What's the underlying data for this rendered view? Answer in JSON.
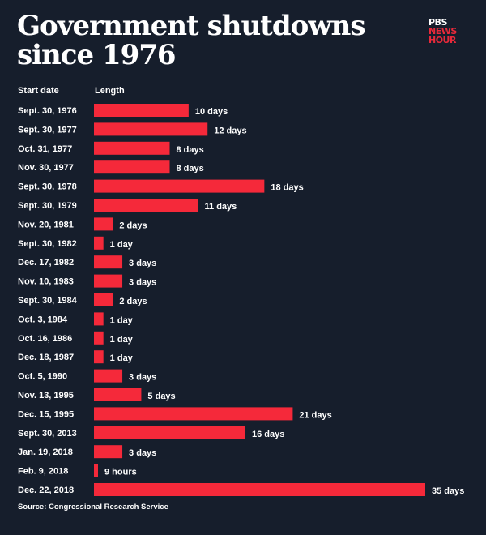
{
  "title": "Government shutdowns since 1976",
  "logo": {
    "line1": "PBS",
    "line2": "NEWS",
    "line3": "HOUR"
  },
  "source": "Source: Congressional Research Service",
  "colors": {
    "background": "#161e2c",
    "bar": "#f5293a",
    "logo_red": "#e8293a"
  },
  "chart_data": {
    "type": "bar",
    "orientation": "horizontal",
    "category_header": "Start date",
    "value_header": "Length",
    "unit": "days",
    "categories": [
      "Sept. 30, 1976",
      "Sept. 30, 1977",
      "Oct. 31, 1977",
      "Nov. 30, 1977",
      "Sept. 30, 1978",
      "Sept. 30, 1979",
      "Nov. 20, 1981",
      "Sept. 30, 1982",
      "Dec. 17, 1982",
      "Nov. 10, 1983",
      "Sept. 30, 1984",
      "Oct. 3, 1984",
      "Oct. 16, 1986",
      "Dec. 18, 1987",
      "Oct. 5, 1990",
      "Nov. 13, 1995",
      "Dec. 15, 1995",
      "Sept. 30, 2013",
      "Jan. 19, 2018",
      "Feb. 9, 2018",
      "Dec. 22, 2018"
    ],
    "values": [
      10,
      12,
      8,
      8,
      18,
      11,
      2,
      1,
      3,
      3,
      2,
      1,
      1,
      1,
      3,
      5,
      21,
      16,
      3,
      0.375,
      35
    ],
    "data_labels": [
      "10 days",
      "12 days",
      "8 days",
      "8 days",
      "18 days",
      "11 days",
      "2 days",
      "1 day",
      "3 days",
      "3 days",
      "2 days",
      "1 day",
      "1 day",
      "1 day",
      "3 days",
      "5 days",
      "21 days",
      "16 days",
      "3 days",
      "9 hours",
      "35 days"
    ],
    "xlim": [
      0,
      35
    ],
    "grid": false,
    "legend": "none"
  }
}
